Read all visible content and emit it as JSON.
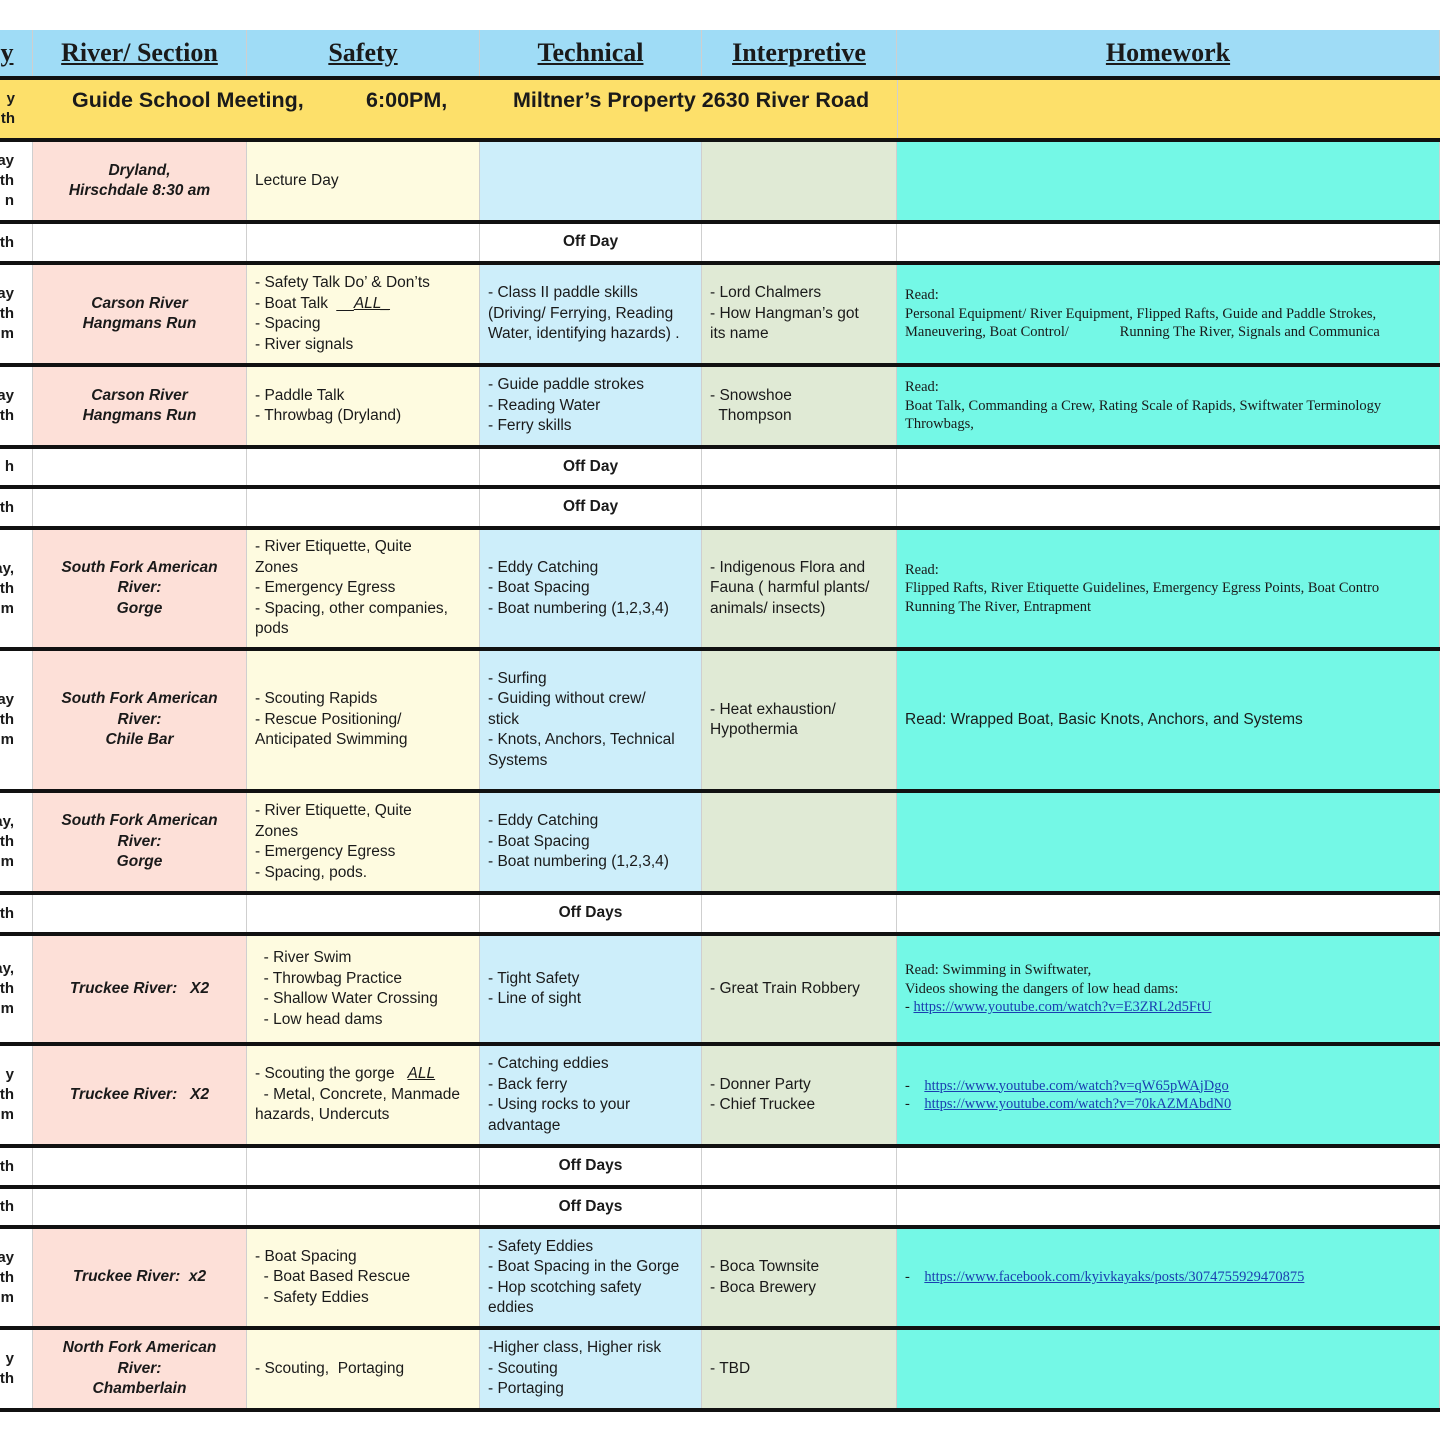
{
  "header": {
    "day": "y",
    "river": "River/ Section",
    "safety": "Safety",
    "technical": "Technical",
    "interpretive": "Interpretive",
    "homework": "Homework"
  },
  "meeting": {
    "day": [
      "y",
      "th"
    ],
    "title": "Guide School Meeting,",
    "time": "6:00PM,",
    "location": "Miltner’s Property 2630 River Road"
  },
  "colors": {
    "header": "#9fdcf6",
    "meeting": "#fde06a",
    "river": "#fde0d8",
    "safety": "#fefbe0",
    "technical": "#cdeefa",
    "interpretive": "#e0ead5",
    "homework": "#74f8e6",
    "link": "#1a3fb0"
  },
  "rows": [
    {
      "h": 82,
      "day": [
        "ay",
        "th",
        "n"
      ],
      "river": [
        "Dryland,",
        "Hirschdale 8:30 am"
      ],
      "safety": [
        "Lecture Day"
      ],
      "technical": [],
      "interpretive": [],
      "homework": []
    },
    {
      "h": 41,
      "off": true,
      "day": [
        "5th"
      ],
      "technical": [
        "Off Day"
      ]
    },
    {
      "h": 102,
      "day": [
        "day",
        "th",
        "m"
      ],
      "river": [
        "Carson River",
        "Hangmans Run"
      ],
      "safety": [
        "- Safety Talk Do’ & Don’ts",
        {
          "text": "- Boat Talk  __",
          "em": "ALL_"
        },
        "- Spacing",
        "- River signals"
      ],
      "technical": [
        "- Class II paddle skills",
        "(Driving/ Ferrying, Reading",
        "Water, identifying hazards) ."
      ],
      "interpretive": [
        "- Lord Chalmers",
        "- How Hangman’s got",
        "its name"
      ],
      "homework": [
        "Read:",
        "Personal Equipment/ River Equipment, Flipped Rafts, Guide and Paddle Strokes,",
        "Maneuvering, Boat Control/              Running The River, Signals and Communica"
      ]
    },
    {
      "h": 82,
      "day": [
        "lay",
        "th"
      ],
      "river": [
        "Carson River",
        "Hangmans Run"
      ],
      "safety": [
        "- Paddle Talk",
        "- Throwbag (Dryland)"
      ],
      "technical": [
        "- Guide paddle strokes",
        "- Reading Water",
        "- Ferry skills"
      ],
      "interpretive": [
        "- Snowshoe",
        "  Thompson"
      ],
      "homework": [
        "Read:",
        "Boat Talk, Commanding a Crew, Rating Scale of Rapids, Swiftwater Terminology",
        "Throwbags,"
      ]
    },
    {
      "h": 40,
      "off": true,
      "day": [
        "h"
      ],
      "technical": [
        "Off Day"
      ]
    },
    {
      "h": 41,
      "off": true,
      "day": [
        "th"
      ],
      "technical": [
        "Off Day"
      ]
    },
    {
      "h": 121,
      "day": [
        "ay,",
        "0th",
        "m"
      ],
      "river": [
        "South Fork American",
        "River:",
        "Gorge"
      ],
      "safety": [
        "- River Etiquette, Quite",
        "Zones",
        "- Emergency Egress",
        "- Spacing, other companies,",
        "pods"
      ],
      "technical": [
        "- Eddy Catching",
        "- Boat Spacing",
        "- Boat numbering (1,2,3,4)"
      ],
      "interpretive": [
        "- Indigenous Flora and",
        "Fauna ( harmful plants/",
        "animals/ insects)"
      ],
      "homework": [
        "Read:",
        "Flipped Rafts, River Etiquette Guidelines, Emergency Egress Points, Boat Contro",
        "Running The River, Entrapment"
      ]
    },
    {
      "h": 142,
      "day": [
        "ay",
        "1th",
        "m"
      ],
      "river": [
        "South Fork American",
        "River:",
        "Chile Bar"
      ],
      "safety": [
        "- Scouting Rapids",
        "- Rescue Positioning/",
        "Anticipated Swimming"
      ],
      "technical": [
        "- Surfing",
        "- Guiding without crew/",
        "stick",
        "- Knots, Anchors, Technical",
        "Systems"
      ],
      "interpretive": [
        "- Heat exhaustion/",
        "Hypothermia"
      ],
      "homeworkSans": true,
      "homework": [
        "Read: Wrapped Boat, Basic Knots, Anchors, and Systems"
      ]
    },
    {
      "h": 102,
      "day": [
        "ay,",
        "2th",
        "m"
      ],
      "river": [
        "South Fork American",
        "River:",
        "Gorge"
      ],
      "safety": [
        "- River Etiquette, Quite",
        "Zones",
        "- Emergency Egress",
        "- Spacing, pods."
      ],
      "technical": [
        "- Eddy Catching",
        "- Boat Spacing",
        "- Boat numbering (1,2,3,4)"
      ],
      "interpretive": [],
      "homework": []
    },
    {
      "h": 41,
      "off": true,
      "day": [
        "3th"
      ],
      "technical": [
        "Off Days"
      ]
    },
    {
      "h": 110,
      "day": [
        "ay,",
        "4th",
        "m"
      ],
      "river": [
        "Truckee River:   X2"
      ],
      "safety": [
        "  - River Swim",
        "  - Throwbag Practice",
        "  - Shallow Water Crossing",
        "  - Low head dams"
      ],
      "technical": [
        "- Tight Safety",
        "- Line of sight"
      ],
      "interpretive": [
        "- Great Train Robbery"
      ],
      "homework": [
        "Read: Swimming in Swiftwater,",
        "Videos showing the dangers of low head dams:",
        {
          "text": "- ",
          "link": "https://www.youtube.com/watch?v=E3ZRL2d5FtU"
        },
        "",
        ""
      ]
    },
    {
      "h": 102,
      "day": [
        "y",
        "5th",
        "m"
      ],
      "river": [
        "Truckee River:   X2"
      ],
      "safety": [
        {
          "text": "- Scouting the gorge   ",
          "em": "ALL"
        },
        "  - Metal, Concrete, Manmade",
        "hazards, Undercuts"
      ],
      "technical": [
        "- Catching eddies",
        "- Back ferry",
        "- Using rocks to your",
        "advantage"
      ],
      "interpretive": [
        "- Donner Party",
        "- Chief Truckee"
      ],
      "homework": [
        {
          "text": "-    ",
          "link": "https://www.youtube.com/watch?v=qW65pWAjDgo"
        },
        {
          "text": "-    ",
          "link": "https://www.youtube.com/watch?v=70kAZMAbdN0"
        }
      ]
    },
    {
      "h": 41,
      "off": true,
      "day": [
        "th"
      ],
      "technical": [
        "Off Days"
      ]
    },
    {
      "h": 40,
      "off": true,
      "day": [
        "'th"
      ],
      "technical": [
        "Off Days"
      ]
    },
    {
      "h": 101,
      "day": [
        "ay",
        "8th",
        "m"
      ],
      "river": [
        "Truckee River:  x2"
      ],
      "safety": [
        "- Boat Spacing",
        "  - Boat Based Rescue",
        "  - Safety Eddies"
      ],
      "technical": [
        "- Safety Eddies",
        "- Boat Spacing in the Gorge",
        "- Hop scotching safety",
        "eddies"
      ],
      "interpretive": [
        "- Boca Townsite",
        "- Boca Brewery"
      ],
      "homework": [
        {
          "text": "-    ",
          "link": "https://www.facebook.com/kyivkayaks/posts/3074755929470875"
        }
      ]
    },
    {
      "h": 82,
      "day": [
        "y",
        "th"
      ],
      "river": [
        "North Fork American",
        "River:",
        "Chamberlain"
      ],
      "safety": [
        "- Scouting,  Portaging"
      ],
      "technical": [
        "-Higher class, Higher risk",
        "- Scouting",
        "- Portaging"
      ],
      "interpretive": [
        "- TBD"
      ],
      "homework": []
    }
  ]
}
